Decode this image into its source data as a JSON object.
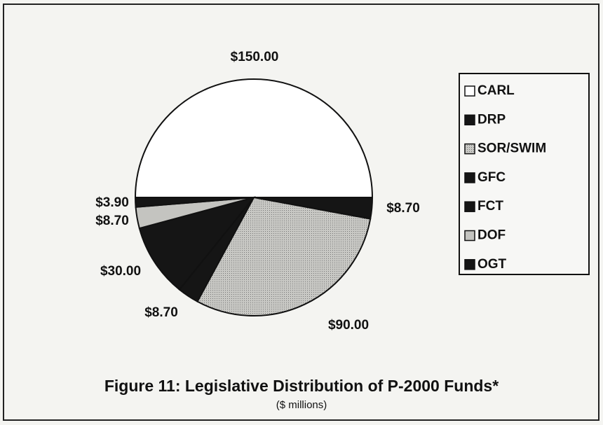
{
  "chart_data": {
    "type": "pie",
    "title": "Figure 11:  Legislative Distribution of P-2000 Funds*",
    "subtitle": "($ millions)",
    "categories": [
      "CARL",
      "DRP",
      "SOR/SWIM",
      "GFC",
      "FCT",
      "DOF",
      "OGT"
    ],
    "values": [
      150,
      8.7,
      90,
      8.7,
      30,
      8.7,
      3.9
    ],
    "value_labels": [
      "$150.00",
      "$8.70",
      "$90.00",
      "$8.70",
      "$30.00",
      "$8.70",
      "$3.90"
    ],
    "colors": [
      "#ffffff",
      "#151515",
      "#b4b4b0",
      "#151515",
      "#151515",
      "#c4c4c0",
      "#151515"
    ],
    "legend": "right"
  }
}
